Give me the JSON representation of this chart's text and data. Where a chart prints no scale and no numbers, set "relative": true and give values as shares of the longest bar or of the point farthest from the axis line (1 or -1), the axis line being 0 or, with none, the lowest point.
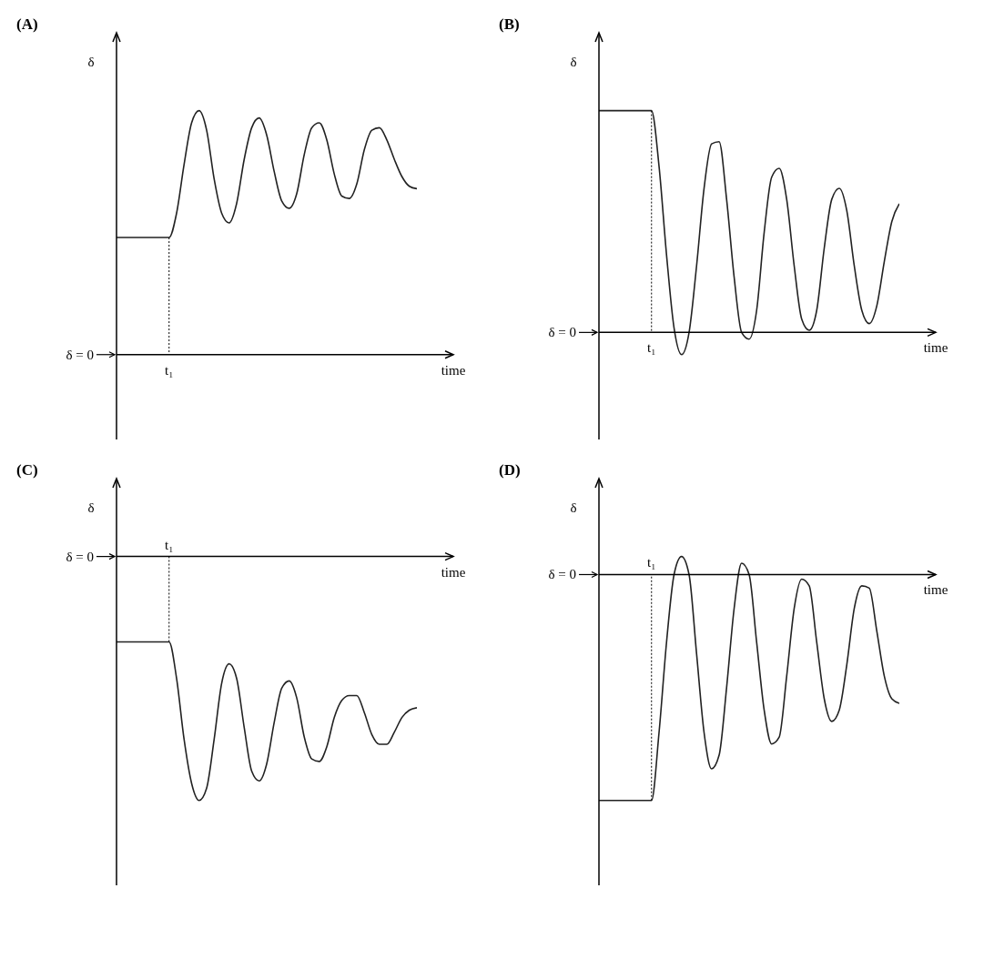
{
  "chart_data": [
    {
      "type": "line",
      "title": "(A)",
      "xlabel": "time",
      "ylabel": "δ",
      "relative": true,
      "color": "#222222",
      "annotations": [
        "t₁",
        "δ = 0"
      ],
      "categories": [
        null,
        null,
        null,
        null,
        null,
        null,
        null,
        null,
        null,
        null,
        null,
        null,
        null,
        null,
        null,
        null,
        null,
        null,
        null,
        null,
        null,
        null,
        null,
        null,
        null,
        null,
        null,
        null,
        null,
        null,
        null,
        null,
        null,
        null,
        null,
        null,
        null,
        null,
        null,
        null,
        null
      ],
      "values": [
        0.48,
        0.48,
        0.48,
        0.48,
        0.48,
        0.48,
        0.48,
        0.48,
        0.58,
        0.78,
        0.95,
        1.0,
        0.92,
        0.72,
        0.58,
        0.54,
        0.62,
        0.8,
        0.93,
        0.97,
        0.9,
        0.75,
        0.63,
        0.6,
        0.66,
        0.82,
        0.93,
        0.95,
        0.88,
        0.74,
        0.65,
        0.64,
        0.7,
        0.84,
        0.92,
        0.93,
        0.88,
        0.8,
        0.73,
        0.69,
        0.68
      ]
    },
    {
      "type": "line",
      "title": "(B)",
      "xlabel": "time",
      "ylabel": "δ",
      "relative": true,
      "color": "#222222",
      "annotations": [
        "t₁",
        "δ = 0"
      ],
      "categories": [
        null,
        null,
        null,
        null,
        null,
        null,
        null,
        null,
        null,
        null,
        null,
        null,
        null,
        null,
        null,
        null,
        null,
        null,
        null,
        null,
        null,
        null,
        null,
        null,
        null,
        null,
        null,
        null,
        null,
        null,
        null,
        null,
        null,
        null,
        null,
        null,
        null,
        null,
        null,
        null,
        null
      ],
      "values": [
        1.0,
        1.0,
        1.0,
        1.0,
        1.0,
        1.0,
        1.0,
        1.0,
        0.75,
        0.35,
        0.02,
        -0.1,
        0.0,
        0.3,
        0.65,
        0.85,
        0.86,
        0.6,
        0.25,
        0.0,
        -0.03,
        0.1,
        0.45,
        0.7,
        0.74,
        0.6,
        0.3,
        0.06,
        0.01,
        0.1,
        0.38,
        0.6,
        0.65,
        0.55,
        0.3,
        0.1,
        0.04,
        0.12,
        0.32,
        0.5,
        0.58
      ]
    },
    {
      "type": "line",
      "title": "(C)",
      "xlabel": "time",
      "ylabel": "δ",
      "relative": true,
      "color": "#222222",
      "annotations": [
        "t₁",
        "δ = 0"
      ],
      "categories": [
        null,
        null,
        null,
        null,
        null,
        null,
        null,
        null,
        null,
        null,
        null,
        null,
        null,
        null,
        null,
        null,
        null,
        null,
        null,
        null,
        null,
        null,
        null,
        null,
        null,
        null,
        null,
        null,
        null,
        null,
        null,
        null,
        null,
        null,
        null,
        null,
        null,
        null,
        null,
        null,
        null
      ],
      "values": [
        -0.35,
        -0.35,
        -0.35,
        -0.35,
        -0.35,
        -0.35,
        -0.35,
        -0.35,
        -0.5,
        -0.75,
        -0.93,
        -1.0,
        -0.95,
        -0.75,
        -0.52,
        -0.44,
        -0.5,
        -0.7,
        -0.88,
        -0.92,
        -0.85,
        -0.68,
        -0.54,
        -0.51,
        -0.58,
        -0.74,
        -0.83,
        -0.84,
        -0.78,
        -0.66,
        -0.59,
        -0.57,
        -0.57,
        -0.64,
        -0.73,
        -0.77,
        -0.77,
        -0.72,
        -0.66,
        -0.63,
        -0.62
      ]
    },
    {
      "type": "line",
      "title": "(D)",
      "xlabel": "time",
      "ylabel": "δ",
      "relative": true,
      "color": "#222222",
      "annotations": [
        "t₁",
        "δ = 0"
      ],
      "categories": [
        null,
        null,
        null,
        null,
        null,
        null,
        null,
        null,
        null,
        null,
        null,
        null,
        null,
        null,
        null,
        null,
        null,
        null,
        null,
        null,
        null,
        null,
        null,
        null,
        null,
        null,
        null,
        null,
        null,
        null,
        null,
        null,
        null,
        null,
        null,
        null,
        null,
        null,
        null,
        null,
        null
      ],
      "values": [
        -1.0,
        -1.0,
        -1.0,
        -1.0,
        -1.0,
        -1.0,
        -1.0,
        -1.0,
        -0.7,
        -0.3,
        0.0,
        0.08,
        0.0,
        -0.35,
        -0.7,
        -0.86,
        -0.8,
        -0.5,
        -0.15,
        0.05,
        0.0,
        -0.3,
        -0.6,
        -0.75,
        -0.72,
        -0.45,
        -0.15,
        -0.02,
        -0.05,
        -0.3,
        -0.55,
        -0.65,
        -0.6,
        -0.4,
        -0.15,
        -0.05,
        -0.06,
        -0.25,
        -0.45,
        -0.55,
        -0.57
      ]
    }
  ]
}
